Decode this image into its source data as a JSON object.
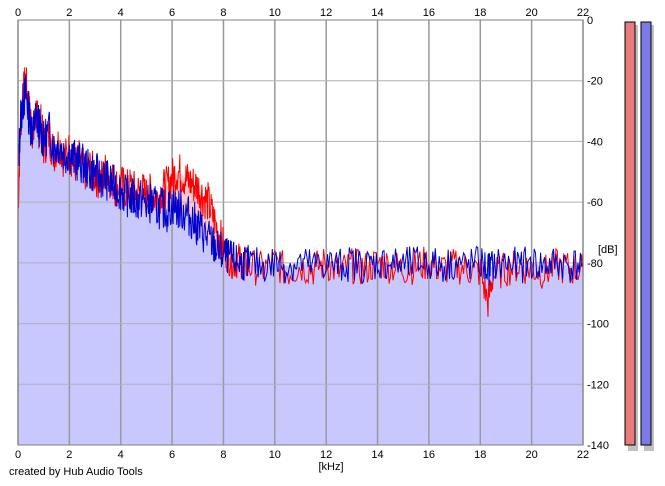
{
  "credit": "created by Hub Audio Tools",
  "chart_data": {
    "type": "line",
    "xlabel": "[kHz]",
    "ylabel": "[dB]",
    "xlim": [
      0,
      22
    ],
    "ylim": [
      -140,
      0
    ],
    "x_ticks": [
      0,
      2,
      4,
      6,
      8,
      10,
      12,
      14,
      16,
      18,
      20,
      22
    ],
    "y_ticks": [
      0,
      -20,
      -40,
      -60,
      -80,
      -100,
      -120,
      -140
    ],
    "grid": true,
    "fill_color": "#c8c8ff",
    "series": [
      {
        "color": "#ff0000",
        "fill": "#ffc8c8",
        "x": [
          0,
          0.1,
          0.2,
          0.3,
          0.4,
          0.5,
          0.6,
          0.7,
          0.8,
          0.9,
          1.0,
          1.2,
          1.4,
          1.6,
          1.8,
          2.0,
          2.2,
          2.4,
          2.6,
          2.8,
          3.0,
          3.2,
          3.4,
          3.6,
          3.8,
          4.0,
          4.2,
          4.4,
          4.6,
          4.8,
          5.0,
          5.2,
          5.4,
          5.6,
          5.8,
          6.0,
          6.2,
          6.4,
          6.6,
          6.8,
          7.0,
          7.2,
          7.4,
          7.6,
          7.8,
          8.0,
          8.2,
          8.4,
          8.6,
          8.8,
          9.0,
          9.5,
          10.0,
          10.5,
          11.0,
          11.5,
          12.0,
          12.5,
          13.0,
          13.5,
          14.0,
          14.5,
          15.0,
          15.5,
          16.0,
          16.5,
          17.0,
          17.5,
          18.0,
          18.3,
          18.5,
          19.0,
          19.5,
          20.0,
          20.5,
          21.0,
          21.5,
          22.0
        ],
        "values": [
          -62,
          -35,
          -25,
          -20,
          -28,
          -33,
          -38,
          -30,
          -36,
          -34,
          -42,
          -38,
          -44,
          -40,
          -46,
          -43,
          -48,
          -46,
          -50,
          -49,
          -51,
          -53,
          -50,
          -52,
          -55,
          -54,
          -56,
          -55,
          -57,
          -56,
          -58,
          -57,
          -59,
          -56,
          -55,
          -52,
          -50,
          -51,
          -53,
          -54,
          -55,
          -58,
          -60,
          -65,
          -70,
          -75,
          -78,
          -80,
          -79,
          -80,
          -81,
          -82,
          -80,
          -83,
          -81,
          -82,
          -80,
          -83,
          -81,
          -82,
          -80,
          -81,
          -82,
          -81,
          -80,
          -82,
          -81,
          -82,
          -83,
          -93,
          -84,
          -82,
          -81,
          -82,
          -83,
          -81,
          -82,
          -82
        ]
      },
      {
        "color": "#0000cc",
        "fill": "#c8c8ff",
        "x": [
          0,
          0.1,
          0.2,
          0.3,
          0.4,
          0.5,
          0.6,
          0.7,
          0.8,
          0.9,
          1.0,
          1.2,
          1.4,
          1.6,
          1.8,
          2.0,
          2.2,
          2.4,
          2.6,
          2.8,
          3.0,
          3.2,
          3.4,
          3.6,
          3.8,
          4.0,
          4.2,
          4.4,
          4.6,
          4.8,
          5.0,
          5.2,
          5.4,
          5.6,
          5.8,
          6.0,
          6.2,
          6.4,
          6.6,
          6.8,
          7.0,
          7.2,
          7.4,
          7.6,
          7.8,
          8.0,
          8.2,
          8.4,
          8.6,
          8.8,
          9.0,
          9.5,
          10.0,
          10.5,
          11.0,
          11.5,
          12.0,
          12.5,
          13.0,
          13.5,
          14.0,
          14.5,
          15.0,
          15.5,
          16.0,
          16.5,
          17.0,
          17.5,
          18.0,
          18.3,
          18.5,
          19.0,
          19.5,
          20.0,
          20.5,
          21.0,
          21.5,
          22.0
        ],
        "values": [
          -50,
          -32,
          -27,
          -24,
          -30,
          -35,
          -36,
          -32,
          -34,
          -37,
          -40,
          -36,
          -42,
          -41,
          -44,
          -44,
          -46,
          -47,
          -48,
          -50,
          -50,
          -52,
          -52,
          -54,
          -55,
          -56,
          -58,
          -58,
          -60,
          -59,
          -61,
          -60,
          -62,
          -62,
          -63,
          -61,
          -62,
          -63,
          -64,
          -66,
          -68,
          -70,
          -72,
          -74,
          -76,
          -77,
          -78,
          -79,
          -80,
          -80,
          -80,
          -81,
          -80,
          -81,
          -80,
          -81,
          -80,
          -81,
          -80,
          -81,
          -80,
          -80,
          -81,
          -80,
          -80,
          -81,
          -80,
          -81,
          -80,
          -82,
          -81,
          -80,
          -81,
          -80,
          -81,
          -80,
          -81,
          -80
        ]
      }
    ]
  }
}
